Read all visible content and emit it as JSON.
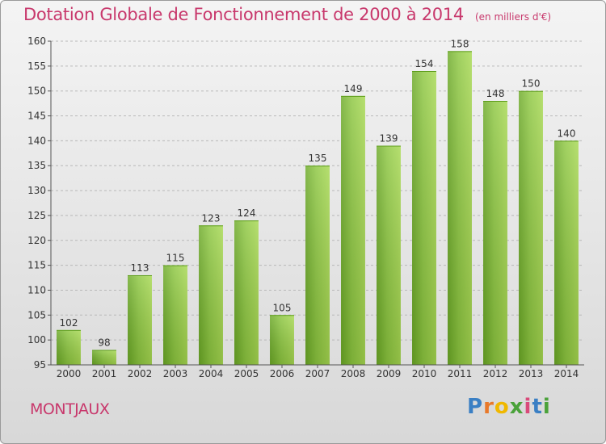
{
  "title": "Dotation Globale de Fonctionnement de 2000 à 2014",
  "subtitle": "(en milliers d'€)",
  "commune": "MONTJAUX",
  "logo": {
    "letters": [
      "P",
      "r",
      "o",
      "x",
      "i",
      "t",
      "i"
    ],
    "colors": [
      "#3a7fc4",
      "#e8792a",
      "#f0b800",
      "#4aa23a",
      "#d94a7a",
      "#3a7fc4",
      "#4aa23a"
    ]
  },
  "colors": {
    "title": "#c8386c",
    "bar_light": "#9fd24a",
    "bar_dark": "#5f9e1c"
  },
  "chart_data": {
    "type": "bar",
    "categories": [
      "2000",
      "2001",
      "2002",
      "2003",
      "2004",
      "2005",
      "2006",
      "2007",
      "2008",
      "2009",
      "2010",
      "2011",
      "2012",
      "2013",
      "2014"
    ],
    "values": [
      102,
      98,
      113,
      115,
      123,
      124,
      105,
      135,
      149,
      139,
      154,
      158,
      148,
      150,
      140
    ],
    "ylim": [
      95,
      160
    ],
    "yticks": [
      95,
      100,
      105,
      110,
      115,
      120,
      125,
      130,
      135,
      140,
      145,
      150,
      155,
      160
    ],
    "grid": "horizontal dashed",
    "data_labels": true
  }
}
